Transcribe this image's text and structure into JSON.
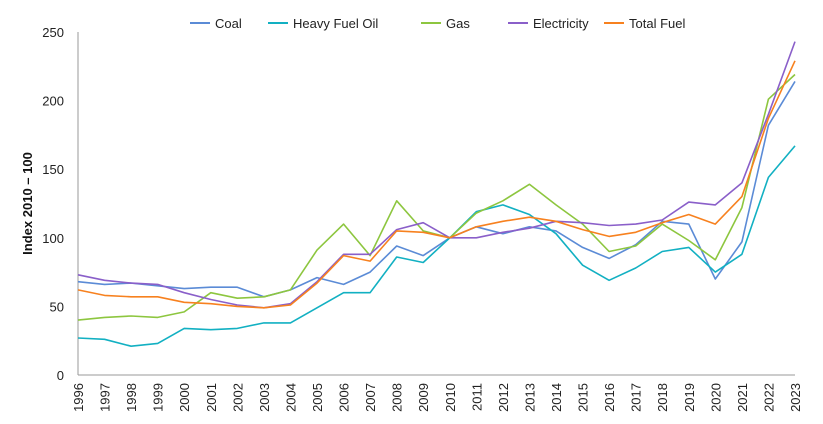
{
  "chart_data": {
    "type": "line",
    "title": "",
    "xlabel": "",
    "ylabel": "Index 2010 – 100",
    "ylim": [
      0,
      250
    ],
    "yticks": [
      0,
      50,
      100,
      150,
      200,
      250
    ],
    "grid": false,
    "legend_placement": "top",
    "x": [
      1996,
      1997,
      1998,
      1999,
      2000,
      2001,
      2002,
      2003,
      2004,
      2005,
      2006,
      2007,
      2008,
      2009,
      2010,
      2011,
      2012,
      2013,
      2014,
      2015,
      2016,
      2017,
      2018,
      2019,
      2020,
      2021,
      2022,
      2023
    ],
    "series": [
      {
        "name": "Coal",
        "color": "#5b8bd6",
        "values": [
          68,
          66,
          67,
          65,
          63,
          64,
          64,
          57,
          62,
          71,
          66,
          75,
          94,
          87,
          100,
          108,
          103,
          108,
          105,
          93,
          85,
          95,
          112,
          110,
          70,
          97,
          182,
          214
        ]
      },
      {
        "name": "Heavy Fuel Oil",
        "color": "#12b0c2",
        "values": [
          27,
          26,
          21,
          23,
          34,
          33,
          34,
          38,
          38,
          49,
          60,
          60,
          86,
          82,
          100,
          119,
          124,
          117,
          103,
          80,
          69,
          78,
          90,
          93,
          75,
          88,
          144,
          167
        ]
      },
      {
        "name": "Gas",
        "color": "#8dc63f",
        "values": [
          40,
          42,
          43,
          42,
          46,
          60,
          56,
          57,
          62,
          91,
          110,
          87,
          127,
          105,
          100,
          118,
          127,
          139,
          124,
          110,
          90,
          94,
          110,
          98,
          84,
          122,
          201,
          219
        ]
      },
      {
        "name": "Electricity",
        "color": "#8a5fc9",
        "values": [
          73,
          69,
          67,
          66,
          60,
          55,
          51,
          49,
          52,
          68,
          88,
          88,
          106,
          111,
          100,
          100,
          104,
          107,
          112,
          111,
          109,
          110,
          113,
          126,
          124,
          140,
          190,
          243
        ]
      },
      {
        "name": "Total Fuel",
        "color": "#f7811f",
        "values": [
          62,
          58,
          57,
          57,
          53,
          52,
          50,
          49,
          51,
          67,
          87,
          83,
          105,
          104,
          100,
          108,
          112,
          115,
          112,
          106,
          101,
          104,
          111,
          117,
          110,
          130,
          187,
          229
        ]
      }
    ]
  }
}
